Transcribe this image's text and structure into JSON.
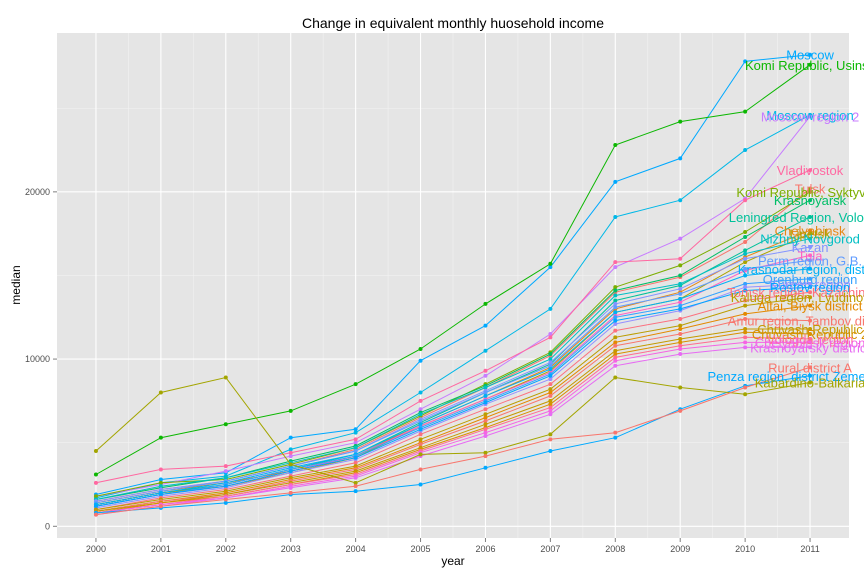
{
  "chart_data": {
    "type": "line",
    "title": "Change in equivalent monthly huosehold income",
    "xlabel": "year",
    "ylabel": "median",
    "x_ticks": [
      "2000",
      "2001",
      "2002",
      "2003",
      "2004",
      "2005",
      "2006",
      "2007",
      "2008",
      "2009",
      "2010",
      "2011"
    ],
    "y_ticks": [
      "0",
      "10000",
      "20000"
    ],
    "xlim": [
      1999.4,
      2011.6
    ],
    "ylim": [
      -700,
      29500
    ],
    "grid": true,
    "legend": "none",
    "series": [
      {
        "name": "Moscow",
        "color": "#00a9ff",
        "values": [
          1900,
          2800,
          3200,
          5300,
          5800,
          9900,
          12000,
          15500,
          20600,
          22000,
          27800,
          28200
        ]
      },
      {
        "name": "Komi Republic, Usinsk",
        "color": "#0cb702",
        "values": [
          3100,
          5300,
          6100,
          6900,
          8500,
          10600,
          13300,
          15700,
          22800,
          24200,
          24800,
          27600
        ]
      },
      {
        "name": "Moscow region",
        "color": "#00b8e7",
        "values": [
          1700,
          2600,
          3000,
          4600,
          5600,
          8000,
          10500,
          13000,
          18500,
          19500,
          22500,
          24600
        ]
      },
      {
        "name": "Moscow region 2",
        "color": "#c77cff",
        "values": [
          1800,
          2500,
          3300,
          4200,
          5000,
          7000,
          9000,
          11500,
          15500,
          17200,
          19600,
          24500
        ]
      },
      {
        "name": "Vladivostok",
        "color": "#ff68a1",
        "values": [
          2600,
          3400,
          3600,
          4400,
          5200,
          7500,
          9300,
          11300,
          15800,
          16000,
          19500,
          21300
        ]
      },
      {
        "name": "Tulsk",
        "color": "#f8766d",
        "values": [
          1500,
          2200,
          2700,
          3600,
          4600,
          6500,
          8300,
          10200,
          14000,
          14900,
          17000,
          20200
        ]
      },
      {
        "name": "Komi Republic, Syktyvkar",
        "color": "#7cae00",
        "values": [
          1800,
          2600,
          2800,
          3700,
          4700,
          6600,
          8500,
          10400,
          14300,
          15600,
          17600,
          20000
        ]
      },
      {
        "name": "Krasnoyarsk",
        "color": "#00be67",
        "values": [
          1600,
          2300,
          2900,
          3900,
          4800,
          6800,
          8400,
          10300,
          14100,
          15000,
          17300,
          19500
        ]
      },
      {
        "name": "Leningred Region, Volosovo",
        "color": "#00c19a",
        "values": [
          1300,
          2000,
          2500,
          3400,
          4300,
          6200,
          8000,
          9700,
          13500,
          14400,
          16500,
          18500
        ]
      },
      {
        "name": "Chelyabinsk",
        "color": "#e68613",
        "values": [
          1400,
          2100,
          2600,
          3300,
          4200,
          6100,
          7800,
          9500,
          13000,
          14000,
          16100,
          17700
        ]
      },
      {
        "name": "Lipetsk",
        "color": "#aba300",
        "values": [
          1300,
          2000,
          2400,
          3200,
          4100,
          6000,
          7600,
          9300,
          12800,
          13600,
          15800,
          17500
        ]
      },
      {
        "name": "Nizhny Novgorod",
        "color": "#00bfc4",
        "values": [
          1600,
          2400,
          2900,
          3800,
          4700,
          6700,
          8300,
          10000,
          13800,
          14500,
          16300,
          17200
        ]
      },
      {
        "name": "Kazan",
        "color": "#8494ff",
        "values": [
          1500,
          2200,
          2700,
          3600,
          4500,
          6400,
          8100,
          9800,
          13300,
          14200,
          16000,
          16700
        ]
      },
      {
        "name": "Tula",
        "color": "#ff61c3",
        "values": [
          1200,
          1900,
          2400,
          3300,
          4200,
          6000,
          7600,
          9200,
          12600,
          13400,
          15300,
          16200
        ]
      },
      {
        "name": "Perm region, G.B.",
        "color": "#619cff",
        "values": [
          1400,
          2100,
          2700,
          3600,
          4500,
          6300,
          8000,
          9600,
          13100,
          13900,
          15400,
          15900
        ]
      },
      {
        "name": "Krasnodar region, district",
        "color": "#00b0f6",
        "values": [
          1300,
          2000,
          2600,
          3500,
          4300,
          6100,
          7800,
          9400,
          12800,
          13600,
          15000,
          15400
        ]
      },
      {
        "name": "Orenburg region",
        "color": "#35a2ff",
        "values": [
          1200,
          1900,
          2500,
          3400,
          4200,
          5900,
          7500,
          9100,
          12500,
          13200,
          14500,
          14800
        ]
      },
      {
        "name": "Kurgan region",
        "color": "#9590ff",
        "values": [
          1100,
          1800,
          2300,
          3200,
          4000,
          5700,
          7300,
          8800,
          12100,
          12900,
          14300,
          14500
        ]
      },
      {
        "name": "Rostov region",
        "color": "#00a5ff",
        "values": [
          1200,
          1900,
          2400,
          3300,
          4100,
          5800,
          7400,
          9000,
          12300,
          13000,
          14100,
          14300
        ]
      },
      {
        "name": "Tomsk region, Kazachinskoe",
        "color": "#fc717f",
        "values": [
          1000,
          1700,
          2200,
          3000,
          3800,
          5500,
          7000,
          8500,
          11700,
          12400,
          13500,
          14000
        ]
      },
      {
        "name": "Kaluga region, Lyudinovsky",
        "color": "#bb9d00",
        "values": [
          1000,
          1600,
          2100,
          2900,
          3600,
          5200,
          6700,
          8200,
          11300,
          12000,
          13200,
          13700
        ]
      },
      {
        "name": "Altai, Biysk district",
        "color": "#e38900",
        "values": [
          900,
          1500,
          2000,
          2800,
          3500,
          5000,
          6500,
          8000,
          11000,
          11800,
          12700,
          13200
        ]
      },
      {
        "name": "Amur region, Tambov district",
        "color": "#f8766d",
        "values": [
          900,
          1500,
          1900,
          2700,
          3400,
          4900,
          6300,
          7800,
          10800,
          11500,
          12400,
          12300
        ]
      },
      {
        "name": "Chuvash Republic",
        "color": "#c49a00",
        "values": [
          900,
          1400,
          1900,
          2600,
          3300,
          4700,
          6100,
          7500,
          10500,
          11200,
          11800,
          11800
        ]
      },
      {
        "name": "Chuvash Republic 2",
        "color": "#d89000",
        "values": [
          800,
          1400,
          1800,
          2500,
          3200,
          4600,
          5900,
          7300,
          10300,
          11000,
          11600,
          11500
        ]
      },
      {
        "name": "Vologda region",
        "color": "#ff6c91",
        "values": [
          800,
          1300,
          1800,
          2500,
          3100,
          4500,
          5800,
          7100,
          10100,
          10800,
          11300,
          11200
        ]
      },
      {
        "name": "Chelyabinsk region",
        "color": "#f564e3",
        "values": [
          800,
          1300,
          1700,
          2400,
          3000,
          4400,
          5600,
          6900,
          9900,
          10600,
          11000,
          11000
        ]
      },
      {
        "name": "Krasnoyarsky district",
        "color": "#e76bf3",
        "values": [
          700,
          1200,
          1700,
          2300,
          2900,
          4200,
          5400,
          6700,
          9600,
          10300,
          10700,
          10700
        ]
      },
      {
        "name": "Penza region, district Zemetchinsky",
        "color": "#00a9ff",
        "values": [
          800,
          1100,
          1400,
          1900,
          2100,
          2500,
          3500,
          4500,
          5300,
          7000,
          8400,
          9000
        ]
      },
      {
        "name": "Kabardino-Balkaria",
        "color": "#a3a500",
        "values": [
          4500,
          8000,
          8900,
          3700,
          2600,
          4300,
          4400,
          5500,
          8900,
          8300,
          7900,
          8600
        ]
      },
      {
        "name": "Rural district A",
        "color": "#f8766d",
        "values": [
          700,
          1200,
          1600,
          2000,
          2400,
          3400,
          4200,
          5200,
          5600,
          6900,
          8300,
          9500
        ]
      }
    ]
  }
}
